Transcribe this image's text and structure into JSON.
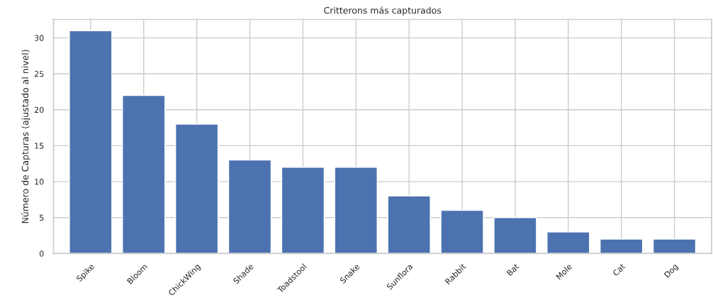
{
  "chart_data": {
    "type": "bar",
    "title": "Critterons más capturados",
    "ylabel": "Número de Capturas (ajustado al nivel)",
    "categories": [
      "Spike",
      "Bloom",
      "ChickWing",
      "Shade",
      "Toadstool",
      "Snake",
      "Sunflora",
      "Rabbit",
      "Bat",
      "Mole",
      "Cat",
      "Dog"
    ],
    "values": [
      31,
      22,
      18,
      13,
      12,
      12,
      8,
      6,
      5,
      3,
      2,
      2
    ],
    "color": "#4c72b0",
    "ylim": [
      0,
      32.55
    ],
    "yticks": [
      0,
      5,
      10,
      15,
      20,
      25,
      30
    ],
    "grid": true
  }
}
